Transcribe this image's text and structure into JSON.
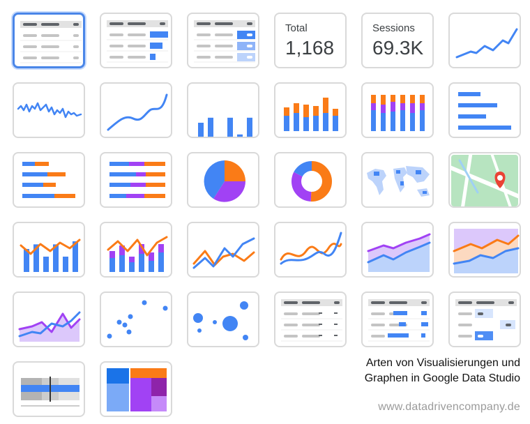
{
  "colors": {
    "blue": "#4285f4",
    "orange": "#fa7b17",
    "purple": "#a142f4",
    "light_blue": "#bcd3fb",
    "light_purple": "#dcc8fb",
    "light_orange": "#fcd9c0",
    "gray_dark": "#5f6368",
    "gray_light": "#c4c4c4",
    "map_green": "#b7e4c0",
    "map_pin": "#ea4335",
    "tile_border": "#d9d9d9",
    "selected_border": "#4a86e8"
  },
  "scorecards": [
    {
      "label": "Total",
      "value": "1,168"
    },
    {
      "label": "Sessions",
      "value": "69.3K"
    }
  ],
  "chart_types": [
    {
      "type": "table",
      "icon": "table-icon",
      "selected": true
    },
    {
      "type": "table-bars",
      "icon": "table-with-bars-icon"
    },
    {
      "type": "table-heatmap",
      "icon": "table-heatmap-icon"
    },
    {
      "type": "scorecard-compact",
      "icon": "scorecard-compact-icon"
    },
    {
      "type": "scorecard",
      "icon": "scorecard-icon"
    },
    {
      "type": "time-series",
      "icon": "time-series-icon"
    },
    {
      "type": "sparkline",
      "icon": "sparkline-icon"
    },
    {
      "type": "smoothed-time-series",
      "icon": "smooth-line-icon"
    },
    {
      "type": "column",
      "icon": "column-chart-icon"
    },
    {
      "type": "stacked-column",
      "icon": "stacked-column-icon"
    },
    {
      "type": "100-stacked-column",
      "icon": "stacked-column-100-icon"
    },
    {
      "type": "bar",
      "icon": "bar-chart-icon"
    },
    {
      "type": "stacked-bar",
      "icon": "stacked-bar-icon"
    },
    {
      "type": "100-stacked-bar",
      "icon": "stacked-bar-100-icon"
    },
    {
      "type": "pie",
      "icon": "pie-chart-icon"
    },
    {
      "type": "donut",
      "icon": "donut-chart-icon"
    },
    {
      "type": "geo-map",
      "icon": "geo-map-icon"
    },
    {
      "type": "google-maps",
      "icon": "google-maps-icon"
    },
    {
      "type": "combo",
      "icon": "combo-chart-icon"
    },
    {
      "type": "stacked-combo",
      "icon": "stacked-combo-icon"
    },
    {
      "type": "line",
      "icon": "line-chart-icon"
    },
    {
      "type": "smoothed-line",
      "icon": "smoothed-line-icon"
    },
    {
      "type": "area",
      "icon": "area-chart-icon"
    },
    {
      "type": "stacked-area",
      "icon": "stacked-area-icon"
    },
    {
      "type": "100-stacked-area",
      "icon": "stacked-area-100-icon"
    },
    {
      "type": "scatter",
      "icon": "scatter-chart-icon"
    },
    {
      "type": "bubble",
      "icon": "bubble-chart-icon"
    },
    {
      "type": "pivot-table",
      "icon": "pivot-table-icon"
    },
    {
      "type": "pivot-table-bars",
      "icon": "pivot-table-bars-icon"
    },
    {
      "type": "pivot-table-heatmap",
      "icon": "pivot-table-heatmap-icon"
    },
    {
      "type": "bullet",
      "icon": "bullet-chart-icon"
    },
    {
      "type": "treemap",
      "icon": "treemap-icon"
    }
  ],
  "caption": {
    "line1": "Arten von Visualisierungen und",
    "line2": "Graphen in Google Data Studio"
  },
  "url": "www.datadrivencompany.de"
}
